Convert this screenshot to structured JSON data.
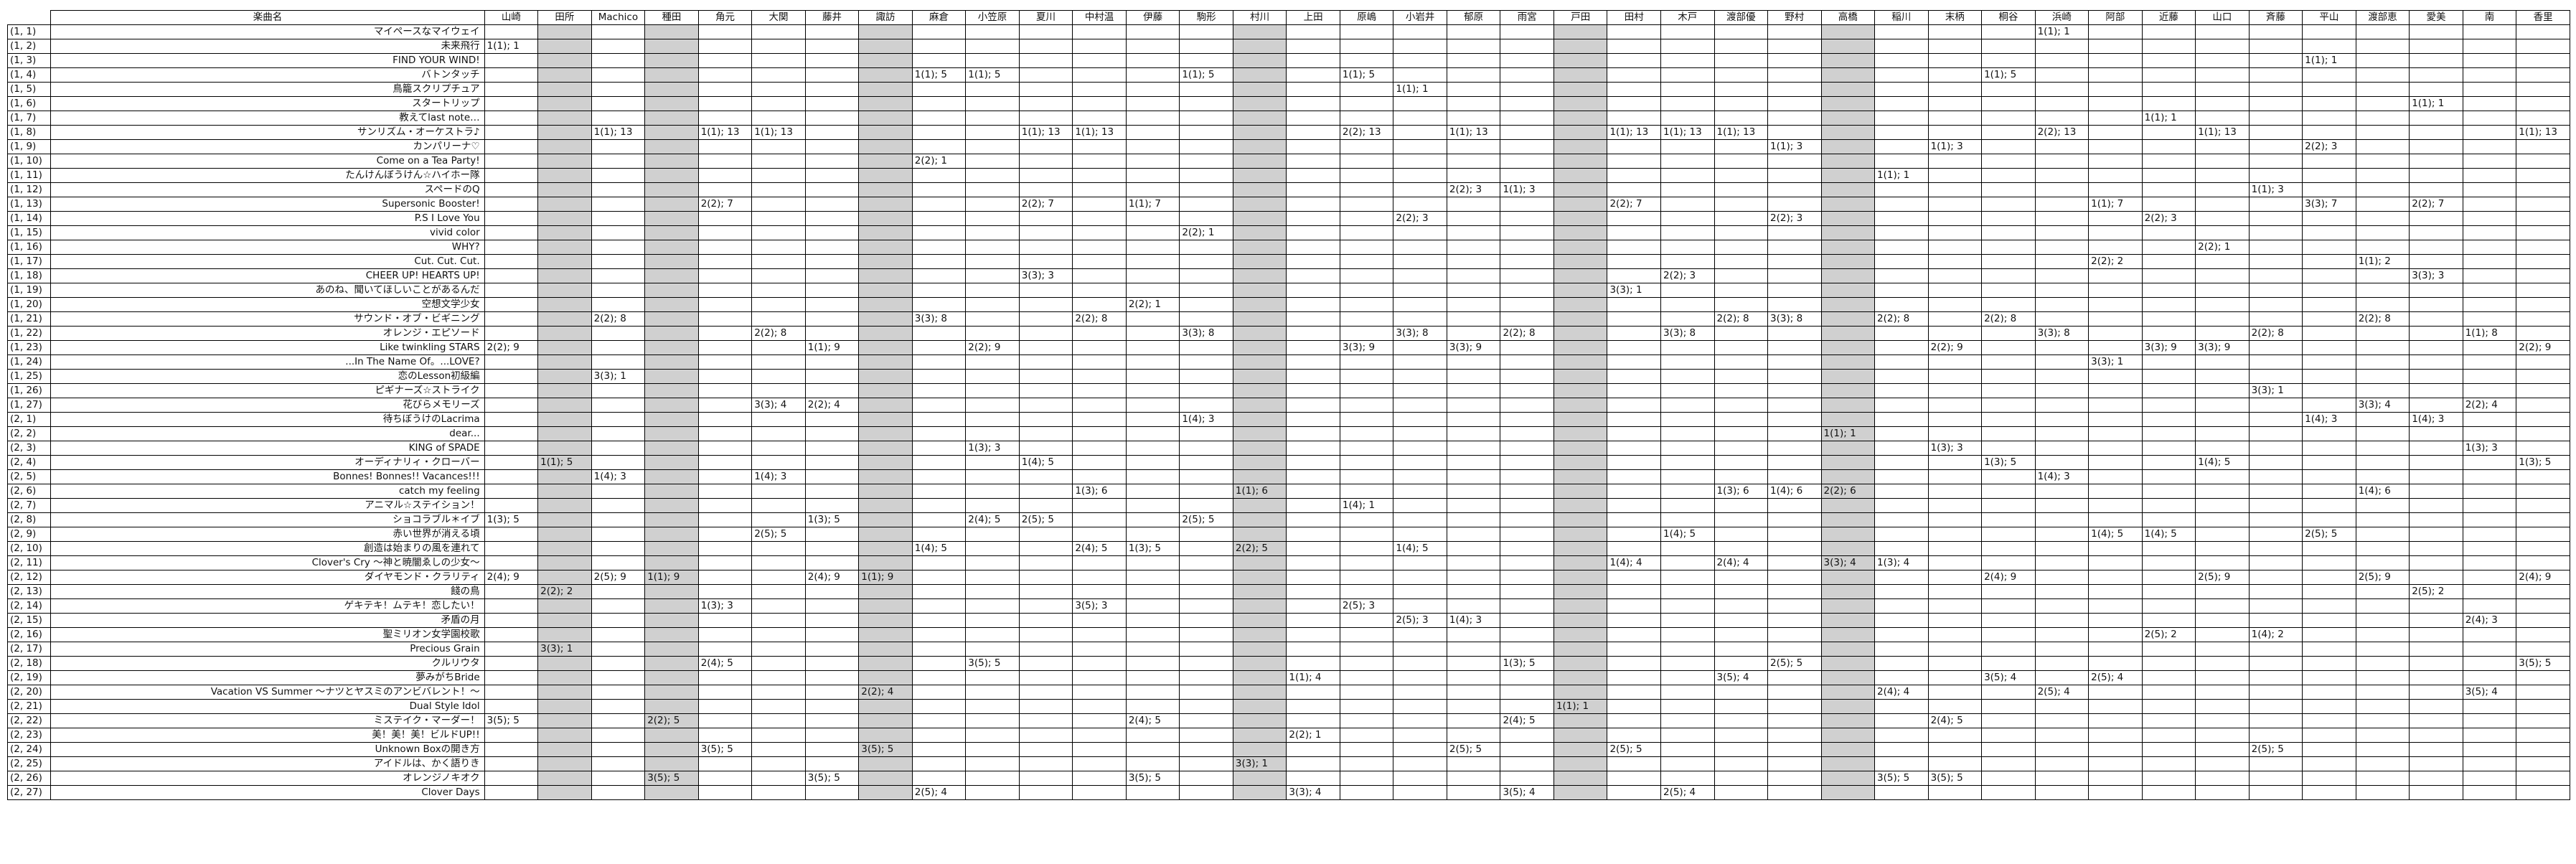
{
  "header": {
    "title_label": "楽曲名",
    "singers": [
      "山崎",
      "田所",
      "Machico",
      "種田",
      "角元",
      "大関",
      "藤井",
      "諏訪",
      "麻倉",
      "小笠原",
      "夏川",
      "中村温",
      "伊藤",
      "駒形",
      "村川",
      "上田",
      "原嶋",
      "小岩井",
      "郁原",
      "雨宮",
      "戸田",
      "田村",
      "木戸",
      "渡部優",
      "野村",
      "高橋",
      "稲川",
      "末柄",
      "桐谷",
      "浜崎",
      "阿部",
      "近藤",
      "山口",
      "斉藤",
      "平山",
      "渡部恵",
      "愛美",
      "南",
      "香里"
    ]
  },
  "shaded_columns": [
    1,
    3,
    7,
    14,
    20,
    25
  ],
  "rows": [
    {
      "id": "(1, 1)",
      "title": "マイペースなマイウェイ",
      "cells": {
        "29": "1(1); 1"
      }
    },
    {
      "id": "(1, 2)",
      "title": "未来飛行",
      "cells": {
        "0": "1(1); 1"
      }
    },
    {
      "id": "(1, 3)",
      "title": "FIND YOUR WIND!",
      "cells": {
        "34": "1(1); 1"
      }
    },
    {
      "id": "(1, 4)",
      "title": "バトンタッチ",
      "cells": {
        "8": "1(1); 5",
        "9": "1(1); 5",
        "13": "1(1); 5",
        "16": "1(1); 5",
        "28": "1(1); 5"
      }
    },
    {
      "id": "(1, 5)",
      "title": "鳥籠スクリプチュア",
      "cells": {
        "17": "1(1); 1"
      }
    },
    {
      "id": "(1, 6)",
      "title": "スタートリップ",
      "cells": {
        "36": "1(1); 1"
      }
    },
    {
      "id": "(1, 7)",
      "title": "教えてlast note…",
      "cells": {
        "31": "1(1); 1"
      }
    },
    {
      "id": "(1, 8)",
      "title": "サンリズム・オーケストラ♪",
      "cells": {
        "2": "1(1); 13",
        "4": "1(1); 13",
        "5": "1(1); 13",
        "10": "1(1); 13",
        "11": "1(1); 13",
        "16": "2(2); 13",
        "18": "1(1); 13",
        "21": "1(1); 13",
        "22": "1(1); 13",
        "23": "1(1); 13",
        "29": "2(2); 13",
        "32": "1(1); 13",
        "38": "1(1); 13"
      }
    },
    {
      "id": "(1, 9)",
      "title": "カンパリーナ♡",
      "cells": {
        "24": "1(1); 3",
        "27": "1(1); 3",
        "34": "2(2); 3"
      }
    },
    {
      "id": "(1, 10)",
      "title": "Come on a Tea Party!",
      "cells": {
        "8": "2(2); 1"
      }
    },
    {
      "id": "(1, 11)",
      "title": "たんけんぼうけん☆ハイホー隊",
      "cells": {
        "26": "1(1); 1"
      }
    },
    {
      "id": "(1, 12)",
      "title": "スペードのQ",
      "cells": {
        "18": "2(2); 3",
        "19": "1(1); 3",
        "33": "1(1); 3"
      }
    },
    {
      "id": "(1, 13)",
      "title": "Supersonic Booster!",
      "cells": {
        "4": "2(2); 7",
        "10": "2(2); 7",
        "12": "1(1); 7",
        "21": "2(2); 7",
        "30": "1(1); 7",
        "34": "3(3); 7",
        "36": "2(2); 7"
      }
    },
    {
      "id": "(1, 14)",
      "title": "P.S I Love You",
      "cells": {
        "17": "2(2); 3",
        "24": "2(2); 3",
        "31": "2(2); 3"
      }
    },
    {
      "id": "(1, 15)",
      "title": "vivid color",
      "cells": {
        "13": "2(2); 1"
      }
    },
    {
      "id": "(1, 16)",
      "title": "WHY?",
      "cells": {
        "32": "2(2); 1"
      }
    },
    {
      "id": "(1, 17)",
      "title": "Cut. Cut. Cut.",
      "cells": {
        "30": "2(2); 2",
        "35": "1(1); 2"
      }
    },
    {
      "id": "(1, 18)",
      "title": "CHEER UP! HEARTS UP!",
      "cells": {
        "10": "3(3); 3",
        "22": "2(2); 3",
        "36": "3(3); 3"
      }
    },
    {
      "id": "(1, 19)",
      "title": "あのね、聞いてほしいことがあるんだ",
      "cells": {
        "21": "3(3); 1"
      }
    },
    {
      "id": "(1, 20)",
      "title": "空想文学少女",
      "cells": {
        "12": "2(2); 1"
      }
    },
    {
      "id": "(1, 21)",
      "title": "サウンド・オブ・ビギニング",
      "cells": {
        "2": "2(2); 8",
        "8": "3(3); 8",
        "11": "2(2); 8",
        "23": "2(2); 8",
        "24": "3(3); 8",
        "26": "2(2); 8",
        "28": "2(2); 8",
        "35": "2(2); 8"
      }
    },
    {
      "id": "(1, 22)",
      "title": "オレンジ・エピソード",
      "cells": {
        "5": "2(2); 8",
        "13": "3(3); 8",
        "17": "3(3); 8",
        "19": "2(2); 8",
        "22": "3(3); 8",
        "29": "3(3); 8",
        "33": "2(2); 8",
        "37": "1(1); 8"
      }
    },
    {
      "id": "(1, 23)",
      "title": "Like twinkling STARS",
      "cells": {
        "0": "2(2); 9",
        "6": "1(1); 9",
        "9": "2(2); 9",
        "16": "3(3); 9",
        "18": "3(3); 9",
        "27": "2(2); 9",
        "31": "3(3); 9",
        "32": "3(3); 9",
        "38": "2(2); 9"
      }
    },
    {
      "id": "(1, 24)",
      "title": "...In The Name Of。...LOVE?",
      "cells": {
        "30": "3(3); 1"
      }
    },
    {
      "id": "(1, 25)",
      "title": "恋のLesson初級編",
      "cells": {
        "2": "3(3); 1"
      }
    },
    {
      "id": "(1, 26)",
      "title": "ピギナーズ☆ストライク",
      "cells": {
        "33": "3(3); 1"
      }
    },
    {
      "id": "(1, 27)",
      "title": "花びらメモリーズ",
      "cells": {
        "5": "3(3); 4",
        "6": "2(2); 4",
        "35": "3(3); 4",
        "37": "2(2); 4"
      }
    },
    {
      "id": "(2, 1)",
      "title": "待ちぼうけのLacrima",
      "cells": {
        "13": "1(4); 3",
        "34": "1(4); 3",
        "36": "1(4); 3"
      }
    },
    {
      "id": "(2, 2)",
      "title": "dear...",
      "cells": {
        "25": "1(1); 1"
      }
    },
    {
      "id": "(2, 3)",
      "title": "KING of SPADE",
      "cells": {
        "9": "1(3); 3",
        "27": "1(3); 3",
        "37": "1(3); 3"
      }
    },
    {
      "id": "(2, 4)",
      "title": "オーディナリィ・クローバー",
      "cells": {
        "1": "1(1); 5",
        "10": "1(4); 5",
        "28": "1(3); 5",
        "32": "1(4); 5",
        "38": "1(3); 5"
      }
    },
    {
      "id": "(2, 5)",
      "title": "Bonnes! Bonnes!! Vacances!!!",
      "cells": {
        "2": "1(4); 3",
        "5": "1(4); 3",
        "29": "1(4); 3"
      }
    },
    {
      "id": "(2, 6)",
      "title": "catch my feeling",
      "cells": {
        "11": "1(3); 6",
        "14": "1(1); 6",
        "23": "1(3); 6",
        "24": "1(4); 6",
        "25": "2(2); 6",
        "35": "1(4); 6"
      }
    },
    {
      "id": "(2, 7)",
      "title": "アニマル☆ステイション！",
      "cells": {
        "16": "1(4); 1"
      }
    },
    {
      "id": "(2, 8)",
      "title": "ショコラブル＊イブ",
      "cells": {
        "0": "1(3); 5",
        "6": "1(3); 5",
        "9": "2(4); 5",
        "10": "2(5); 5",
        "13": "2(5); 5"
      }
    },
    {
      "id": "(2, 9)",
      "title": "赤い世界が消える頃",
      "cells": {
        "5": "2(5); 5",
        "22": "1(4); 5",
        "30": "1(4); 5",
        "31": "1(4); 5",
        "34": "2(5); 5"
      }
    },
    {
      "id": "(2, 10)",
      "title": "創造は始まりの風を連れて",
      "cells": {
        "8": "1(4); 5",
        "11": "2(4); 5",
        "12": "1(3); 5",
        "14": "2(2); 5",
        "17": "1(4); 5"
      }
    },
    {
      "id": "(2, 11)",
      "title": "Clover's Cry ～神と暁闇ゑしの少女～",
      "cells": {
        "21": "1(4); 4",
        "23": "2(4); 4",
        "25": "3(3); 4",
        "26": "1(3); 4"
      }
    },
    {
      "id": "(2, 12)",
      "title": "ダイヤモンド・クラリティ",
      "cells": {
        "0": "2(4); 9",
        "2": "2(5); 9",
        "3": "1(1); 9",
        "6": "2(4); 9",
        "7": "1(1); 9",
        "28": "2(4); 9",
        "32": "2(5); 9",
        "35": "2(5); 9",
        "38": "2(4); 9"
      }
    },
    {
      "id": "(2, 13)",
      "title": "餞の鳥",
      "cells": {
        "1": "2(2); 2",
        "36": "2(5); 2"
      }
    },
    {
      "id": "(2, 14)",
      "title": "ゲキテキ！ムテキ！恋したい！",
      "cells": {
        "4": "1(3); 3",
        "11": "3(5); 3",
        "16": "2(5); 3"
      }
    },
    {
      "id": "(2, 15)",
      "title": "矛盾の月",
      "cells": {
        "17": "2(5); 3",
        "18": "1(4); 3",
        "37": "2(4); 3"
      }
    },
    {
      "id": "(2, 16)",
      "title": "聖ミリオン女学園校歌",
      "cells": {
        "31": "2(5); 2",
        "33": "1(4); 2"
      }
    },
    {
      "id": "(2, 17)",
      "title": "Precious Grain",
      "cells": {
        "1": "3(3); 1"
      }
    },
    {
      "id": "(2, 18)",
      "title": "クルリウタ",
      "cells": {
        "4": "2(4); 5",
        "9": "3(5); 5",
        "19": "1(3); 5",
        "24": "2(5); 5",
        "38": "3(5); 5"
      }
    },
    {
      "id": "(2, 19)",
      "title": "夢みがちBride",
      "cells": {
        "15": "1(1); 4",
        "23": "3(5); 4",
        "28": "3(5); 4",
        "30": "2(5); 4"
      }
    },
    {
      "id": "(2, 20)",
      "title": "Vacation VS Summer ～ナツとヤスミのアンビバレント！～",
      "cells": {
        "7": "2(2); 4",
        "26": "2(4); 4",
        "29": "2(5); 4",
        "37": "3(5); 4"
      }
    },
    {
      "id": "(2, 21)",
      "title": "Dual Style Idol",
      "cells": {
        "20": "1(1); 1"
      }
    },
    {
      "id": "(2, 22)",
      "title": "ミステイク・マーダー！",
      "cells": {
        "0": "3(5); 5",
        "3": "2(2); 5",
        "12": "2(4); 5",
        "19": "2(4); 5",
        "27": "2(4); 5"
      }
    },
    {
      "id": "(2, 23)",
      "title": "美！美！美！ビルドUP!!",
      "cells": {
        "15": "2(2); 1"
      }
    },
    {
      "id": "(2, 24)",
      "title": "Unknown Boxの開き方",
      "cells": {
        "4": "3(5); 5",
        "7": "3(5); 5",
        "18": "2(5); 5",
        "21": "2(5); 5",
        "33": "2(5); 5"
      }
    },
    {
      "id": "(2, 25)",
      "title": "アイドルは、かく語りき",
      "cells": {
        "14": "3(3); 1"
      }
    },
    {
      "id": "(2, 26)",
      "title": "オレンジノキオク",
      "cells": {
        "3": "3(5); 5",
        "6": "3(5); 5",
        "12": "3(5); 5",
        "26": "3(5); 5",
        "27": "3(5); 5"
      }
    },
    {
      "id": "(2, 27)",
      "title": "Clover Days",
      "cells": {
        "8": "2(5); 4",
        "15": "3(3); 4",
        "19": "3(5); 4",
        "22": "2(5); 4"
      }
    }
  ]
}
